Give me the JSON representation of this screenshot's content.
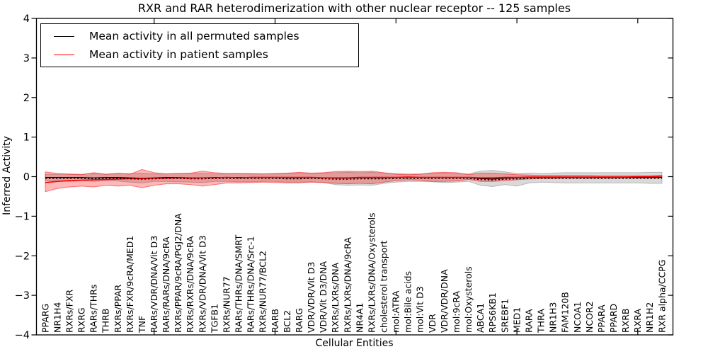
{
  "chart_data": {
    "type": "line",
    "title": "RXR and RAR heterodimerization with other nuclear receptor -- 125 samples",
    "xlabel": "Cellular Entities",
    "ylabel": "Inferred Activity",
    "ylim": [
      -4,
      4
    ],
    "yticks": [
      4,
      3,
      2,
      1,
      0,
      -1,
      -2,
      -3,
      -4
    ],
    "x_major_ticks": [
      10,
      20,
      30,
      40,
      50
    ],
    "grid": false,
    "legend_position": "upper left",
    "categories": [
      "PPARG",
      "NR1H4",
      "RXRs/FXR",
      "RXRG",
      "RARs/THRs",
      "THRB",
      "RXRs/PPAR",
      "RXRs/FXR/9cRA/MED1",
      "TNF",
      "RARs/VDR/DNA/Vit D3",
      "RARs/RARs/DNA/9cRA",
      "RXRs/PPAR/9cRA/PGJ2/DNA",
      "RXRs/RXRs/DNA/9cRA",
      "RXRs/VDR/DNA/Vit D3",
      "TGFB1",
      "RXRs/NUR77",
      "RARs/THRs/DNA/SMRT",
      "RARs/THRs/DNA/Src-1",
      "RXRs/NUR77/BCL2",
      "RARB",
      "BCL2",
      "RARG",
      "VDR/VDR/Vit D3",
      "VDR/Vit D3/DNA",
      "RXRs/LXRs/DNA",
      "RXRs/LXRs/DNA/9cRA",
      "NR4A1",
      "RXRs/LXRs/DNA/Oxysterols",
      "cholesterol transport",
      "mol:ATRA",
      "mol:Bile acids",
      "mol:Vit D3",
      "VDR",
      "VDR/VDR/DNA",
      "mol:9cRA",
      "mol:Oxysterols",
      "ABCA1",
      "RPS6KB1",
      "SREBF1",
      "MED1",
      "RARA",
      "THRA",
      "NR1H3",
      "FAM120B",
      "NCOA1",
      "NCOR2",
      "PPARA",
      "PPARD",
      "RXRB",
      "RXRA",
      "NR1H2",
      "RXR alpha/CCPG"
    ],
    "series": [
      {
        "name": "Mean activity in all permuted samples",
        "color": "#000000",
        "band_color": "#8a8a8a",
        "band_opacity": 0.32,
        "values": [
          -0.02,
          -0.02,
          -0.02,
          -0.02,
          -0.03,
          -0.02,
          -0.02,
          -0.03,
          -0.04,
          -0.03,
          -0.02,
          -0.02,
          -0.03,
          -0.03,
          -0.02,
          -0.02,
          -0.02,
          -0.02,
          -0.02,
          -0.02,
          -0.03,
          -0.03,
          -0.02,
          -0.03,
          -0.04,
          -0.04,
          -0.03,
          -0.03,
          -0.03,
          -0.02,
          -0.02,
          -0.02,
          -0.02,
          -0.02,
          -0.02,
          -0.02,
          -0.05,
          -0.06,
          -0.04,
          -0.03,
          -0.02,
          -0.02,
          -0.02,
          -0.02,
          -0.02,
          -0.02,
          -0.02,
          -0.02,
          -0.02,
          -0.02,
          -0.02,
          -0.02
        ],
        "band_upper": [
          0.06,
          0.06,
          0.07,
          0.06,
          0.08,
          0.06,
          0.07,
          0.08,
          0.09,
          0.07,
          0.07,
          0.08,
          0.08,
          0.09,
          0.07,
          0.07,
          0.08,
          0.08,
          0.07,
          0.07,
          0.08,
          0.09,
          0.08,
          0.09,
          0.1,
          0.11,
          0.1,
          0.11,
          0.09,
          0.08,
          0.07,
          0.07,
          0.08,
          0.09,
          0.08,
          0.07,
          0.14,
          0.16,
          0.12,
          0.08,
          0.09,
          0.08,
          0.09,
          0.1,
          0.1,
          0.1,
          0.1,
          0.1,
          0.1,
          0.1,
          0.11,
          0.11
        ],
        "band_lower": [
          -0.1,
          -0.11,
          -0.12,
          -0.1,
          -0.12,
          -0.1,
          -0.11,
          -0.14,
          -0.16,
          -0.12,
          -0.12,
          -0.13,
          -0.14,
          -0.15,
          -0.12,
          -0.12,
          -0.13,
          -0.13,
          -0.12,
          -0.12,
          -0.14,
          -0.14,
          -0.13,
          -0.15,
          -0.2,
          -0.22,
          -0.21,
          -0.22,
          -0.17,
          -0.14,
          -0.12,
          -0.12,
          -0.13,
          -0.15,
          -0.14,
          -0.12,
          -0.22,
          -0.25,
          -0.2,
          -0.24,
          -0.16,
          -0.14,
          -0.15,
          -0.16,
          -0.16,
          -0.16,
          -0.16,
          -0.16,
          -0.16,
          -0.16,
          -0.17,
          -0.17
        ]
      },
      {
        "name": "Mean activity in patient samples",
        "color": "#ff0000",
        "band_color": "#ff0000",
        "band_opacity": 0.28,
        "values": [
          -0.15,
          -0.12,
          -0.1,
          -0.09,
          -0.08,
          -0.07,
          -0.06,
          -0.05,
          -0.05,
          -0.04,
          -0.04,
          -0.03,
          -0.04,
          -0.03,
          -0.03,
          -0.02,
          -0.03,
          -0.02,
          -0.02,
          -0.02,
          -0.02,
          -0.02,
          -0.02,
          -0.03,
          -0.03,
          -0.03,
          -0.02,
          -0.02,
          -0.02,
          -0.02,
          -0.01,
          -0.02,
          -0.02,
          -0.02,
          -0.02,
          -0.02,
          -0.03,
          -0.03,
          -0.02,
          -0.02,
          -0.01,
          -0.01,
          -0.01,
          -0.01,
          -0.01,
          -0.01,
          -0.01,
          -0.01,
          -0.01,
          0.0,
          0.0,
          0.01
        ],
        "band_upper": [
          0.12,
          0.08,
          0.06,
          0.05,
          0.1,
          0.06,
          0.09,
          0.06,
          0.18,
          0.1,
          0.07,
          0.08,
          0.09,
          0.14,
          0.1,
          0.08,
          0.08,
          0.07,
          0.07,
          0.08,
          0.09,
          0.11,
          0.09,
          0.1,
          0.13,
          0.14,
          0.13,
          0.14,
          0.1,
          0.06,
          0.05,
          0.06,
          0.1,
          0.11,
          0.1,
          0.05,
          0.09,
          0.09,
          0.07,
          0.05,
          0.04,
          0.03,
          0.03,
          0.03,
          0.03,
          0.03,
          0.02,
          0.02,
          0.02,
          0.02,
          0.02,
          0.03
        ],
        "band_lower": [
          -0.38,
          -0.3,
          -0.26,
          -0.24,
          -0.26,
          -0.22,
          -0.24,
          -0.22,
          -0.28,
          -0.22,
          -0.18,
          -0.18,
          -0.2,
          -0.24,
          -0.2,
          -0.16,
          -0.16,
          -0.15,
          -0.14,
          -0.15,
          -0.16,
          -0.16,
          -0.14,
          -0.15,
          -0.17,
          -0.18,
          -0.17,
          -0.18,
          -0.14,
          -0.1,
          -0.08,
          -0.09,
          -0.12,
          -0.12,
          -0.11,
          -0.07,
          -0.12,
          -0.12,
          -0.1,
          -0.08,
          -0.06,
          -0.05,
          -0.05,
          -0.04,
          -0.04,
          -0.04,
          -0.04,
          -0.04,
          -0.03,
          -0.03,
          -0.03,
          -0.02
        ]
      }
    ]
  }
}
